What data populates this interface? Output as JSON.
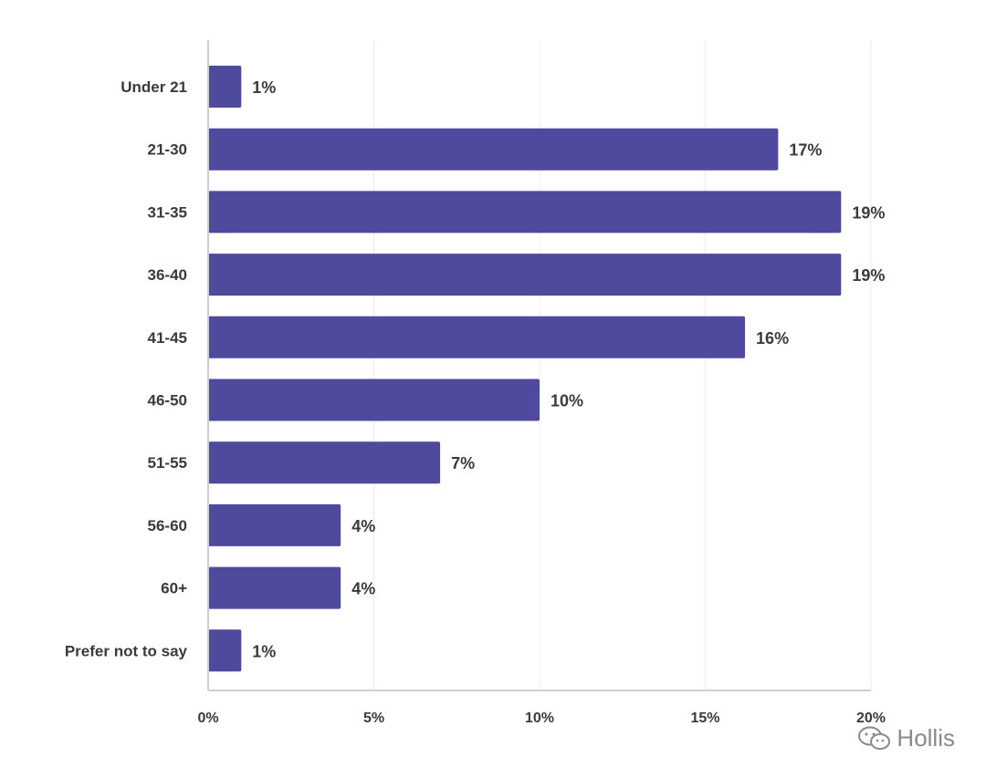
{
  "chart_data": {
    "type": "bar",
    "orientation": "horizontal",
    "categories": [
      "Under 21",
      "21-30",
      "31-35",
      "36-40",
      "41-45",
      "46-50",
      "51-55",
      "56-60",
      "60+",
      "Prefer not to say"
    ],
    "values": [
      1,
      17.2,
      19.1,
      19.1,
      16.2,
      10,
      7,
      4,
      4,
      1
    ],
    "data_labels": [
      "1%",
      "17%",
      "19%",
      "19%",
      "16%",
      "10%",
      "7%",
      "4%",
      "4%",
      "1%"
    ],
    "x_ticks": [
      0,
      5,
      10,
      15,
      20
    ],
    "x_tick_labels": [
      "0%",
      "5%",
      "10%",
      "15%",
      "20%"
    ],
    "xlim": [
      0,
      20
    ],
    "grid": true,
    "bar_color": "#4f4a9e",
    "title": "",
    "xlabel": "",
    "ylabel": ""
  },
  "watermark": {
    "icon": "wechat-icon",
    "text": "Hollis"
  }
}
